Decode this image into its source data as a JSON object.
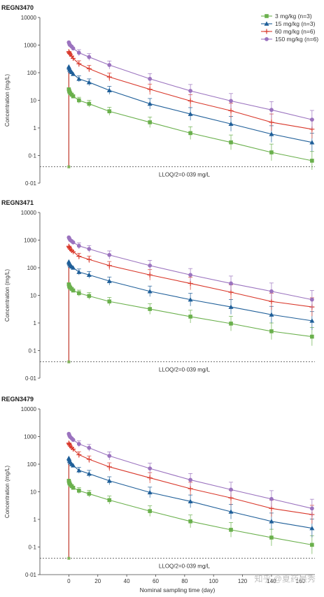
{
  "chart_data": [
    {
      "type": "line",
      "title": "REGN3470",
      "ylabel": "Concentration (mg/L)",
      "xlabel": "",
      "yscale": "log",
      "ylim": [
        0.01,
        10000
      ],
      "xlim": [
        -20,
        170
      ],
      "yticks": [
        "0·01",
        "0·1",
        "1",
        "10",
        "100",
        "1000",
        "10000"
      ],
      "xticks": [],
      "legend_position": "top-right",
      "reference_line": {
        "value": 0.039,
        "label": "LLOQ/2=0·039 mg/L",
        "style": "dashed"
      },
      "series": [
        {
          "name": "3 mg/kg (n=3)",
          "color": "#6ab04c",
          "marker": "square",
          "x": [
            0,
            0.25,
            0.5,
            1,
            2,
            3,
            7,
            14,
            28,
            56,
            84,
            112,
            140,
            168
          ],
          "y": [
            25,
            22,
            20,
            18,
            16,
            14,
            10,
            7.5,
            4.0,
            1.6,
            0.65,
            0.3,
            0.13,
            0.065
          ]
        },
        {
          "name": "15 mg/kg (n=3)",
          "color": "#1f5f99",
          "marker": "triangle",
          "x": [
            0,
            0.25,
            0.5,
            1,
            2,
            3,
            7,
            14,
            28,
            56,
            84,
            112,
            140,
            168
          ],
          "y": [
            165,
            150,
            130,
            115,
            105,
            90,
            60,
            45,
            23,
            7.5,
            3.2,
            1.4,
            0.6,
            0.3
          ]
        },
        {
          "name": "60 mg/kg (n=6)",
          "color": "#d9382b",
          "marker": "plus",
          "x": [
            0,
            0.25,
            0.5,
            1,
            2,
            3,
            7,
            14,
            28,
            56,
            84,
            112,
            140,
            168
          ],
          "y": [
            580,
            540,
            500,
            460,
            400,
            330,
            210,
            140,
            70,
            25,
            9.5,
            4.2,
            1.6,
            0.9
          ]
        },
        {
          "name": "150 mg/kg (n=6)",
          "color": "#9b73bf",
          "marker": "circle",
          "x": [
            0,
            0.25,
            0.5,
            1,
            2,
            3,
            7,
            14,
            28,
            56,
            84,
            112,
            140,
            168
          ],
          "y": [
            1250,
            1150,
            1050,
            980,
            880,
            760,
            530,
            370,
            190,
            60,
            22,
            9.5,
            4.5,
            2.0
          ]
        }
      ]
    },
    {
      "type": "line",
      "title": "REGN3471",
      "ylabel": "Concentration (mg/L)",
      "xlabel": "",
      "yscale": "log",
      "ylim": [
        0.01,
        10000
      ],
      "xlim": [
        -20,
        170
      ],
      "yticks": [
        "0·01",
        "0·1",
        "1",
        "10",
        "100",
        "1000",
        "10000"
      ],
      "xticks": [],
      "reference_line": {
        "value": 0.039,
        "label": "LLOQ/2=0·039 mg/L",
        "style": "dashed"
      },
      "series": [
        {
          "name": "3 mg/kg (n=3)",
          "color": "#6ab04c",
          "marker": "square",
          "x": [
            0,
            0.25,
            0.5,
            1,
            2,
            3,
            7,
            14,
            28,
            56,
            84,
            112,
            140,
            168
          ],
          "y": [
            25,
            22,
            20,
            19,
            17,
            15,
            12,
            9.5,
            6.0,
            3.2,
            1.7,
            0.95,
            0.5,
            0.32
          ]
        },
        {
          "name": "15 mg/kg (n=3)",
          "color": "#1f5f99",
          "marker": "triangle",
          "x": [
            0,
            0.25,
            0.5,
            1,
            2,
            3,
            7,
            14,
            28,
            56,
            84,
            112,
            140,
            168
          ],
          "y": [
            165,
            150,
            135,
            120,
            110,
            100,
            70,
            55,
            33,
            14,
            7.0,
            3.8,
            2.0,
            1.2
          ]
        },
        {
          "name": "60 mg/kg (n=6)",
          "color": "#d9382b",
          "marker": "plus",
          "x": [
            0,
            0.25,
            0.5,
            1,
            2,
            3,
            7,
            14,
            28,
            56,
            84,
            112,
            140,
            168
          ],
          "y": [
            600,
            560,
            520,
            470,
            420,
            380,
            260,
            200,
            120,
            55,
            27,
            13,
            6.0,
            3.8
          ]
        },
        {
          "name": "150 mg/kg (n=6)",
          "color": "#9b73bf",
          "marker": "circle",
          "x": [
            0,
            0.25,
            0.5,
            1,
            2,
            3,
            7,
            14,
            28,
            56,
            84,
            112,
            140,
            168
          ],
          "y": [
            1250,
            1180,
            1100,
            1000,
            920,
            830,
            620,
            480,
            290,
            120,
            55,
            27,
            14,
            7.0
          ]
        }
      ]
    },
    {
      "type": "line",
      "title": "REGN3479",
      "ylabel": "Concentration (mg/L)",
      "xlabel": "Nominal sampling time (day)",
      "yscale": "log",
      "ylim": [
        0.01,
        10000
      ],
      "xlim": [
        -20,
        170
      ],
      "yticks": [
        "0·01",
        "0·1",
        "1",
        "10",
        "100",
        "1000",
        "10000"
      ],
      "xticks": [
        "0",
        "20",
        "40",
        "60",
        "80",
        "100",
        "120",
        "140",
        "160"
      ],
      "reference_line": {
        "value": 0.039,
        "label": "LLOQ/2=0·039 mg/L",
        "style": "dashed"
      },
      "series": [
        {
          "name": "3 mg/kg (n=3)",
          "color": "#6ab04c",
          "marker": "square",
          "x": [
            0,
            0.25,
            0.5,
            1,
            2,
            3,
            7,
            14,
            28,
            56,
            84,
            112,
            140,
            168
          ],
          "y": [
            25,
            22,
            20,
            18,
            16,
            14,
            11,
            8.5,
            5.0,
            2.0,
            0.85,
            0.42,
            0.22,
            0.12
          ]
        },
        {
          "name": "15 mg/kg (n=3)",
          "color": "#1f5f99",
          "marker": "triangle",
          "x": [
            0,
            0.25,
            0.5,
            1,
            2,
            3,
            7,
            14,
            28,
            56,
            84,
            112,
            140,
            168
          ],
          "y": [
            165,
            150,
            130,
            115,
            100,
            90,
            60,
            45,
            25,
            9.5,
            4.5,
            1.9,
            0.85,
            0.48
          ]
        },
        {
          "name": "60 mg/kg (n=6)",
          "color": "#d9382b",
          "marker": "plus",
          "x": [
            0,
            0.25,
            0.5,
            1,
            2,
            3,
            7,
            14,
            28,
            56,
            84,
            112,
            140,
            168
          ],
          "y": [
            580,
            540,
            500,
            450,
            400,
            350,
            220,
            150,
            80,
            32,
            13,
            6.0,
            2.5,
            1.5
          ]
        },
        {
          "name": "150 mg/kg (n=6)",
          "color": "#9b73bf",
          "marker": "circle",
          "x": [
            0,
            0.25,
            0.5,
            1,
            2,
            3,
            7,
            14,
            28,
            56,
            84,
            112,
            140,
            168
          ],
          "y": [
            1250,
            1150,
            1050,
            960,
            860,
            760,
            540,
            390,
            200,
            70,
            27,
            12,
            5.5,
            2.5
          ]
        }
      ]
    }
  ],
  "watermark": "知乎 @夏药最秀"
}
